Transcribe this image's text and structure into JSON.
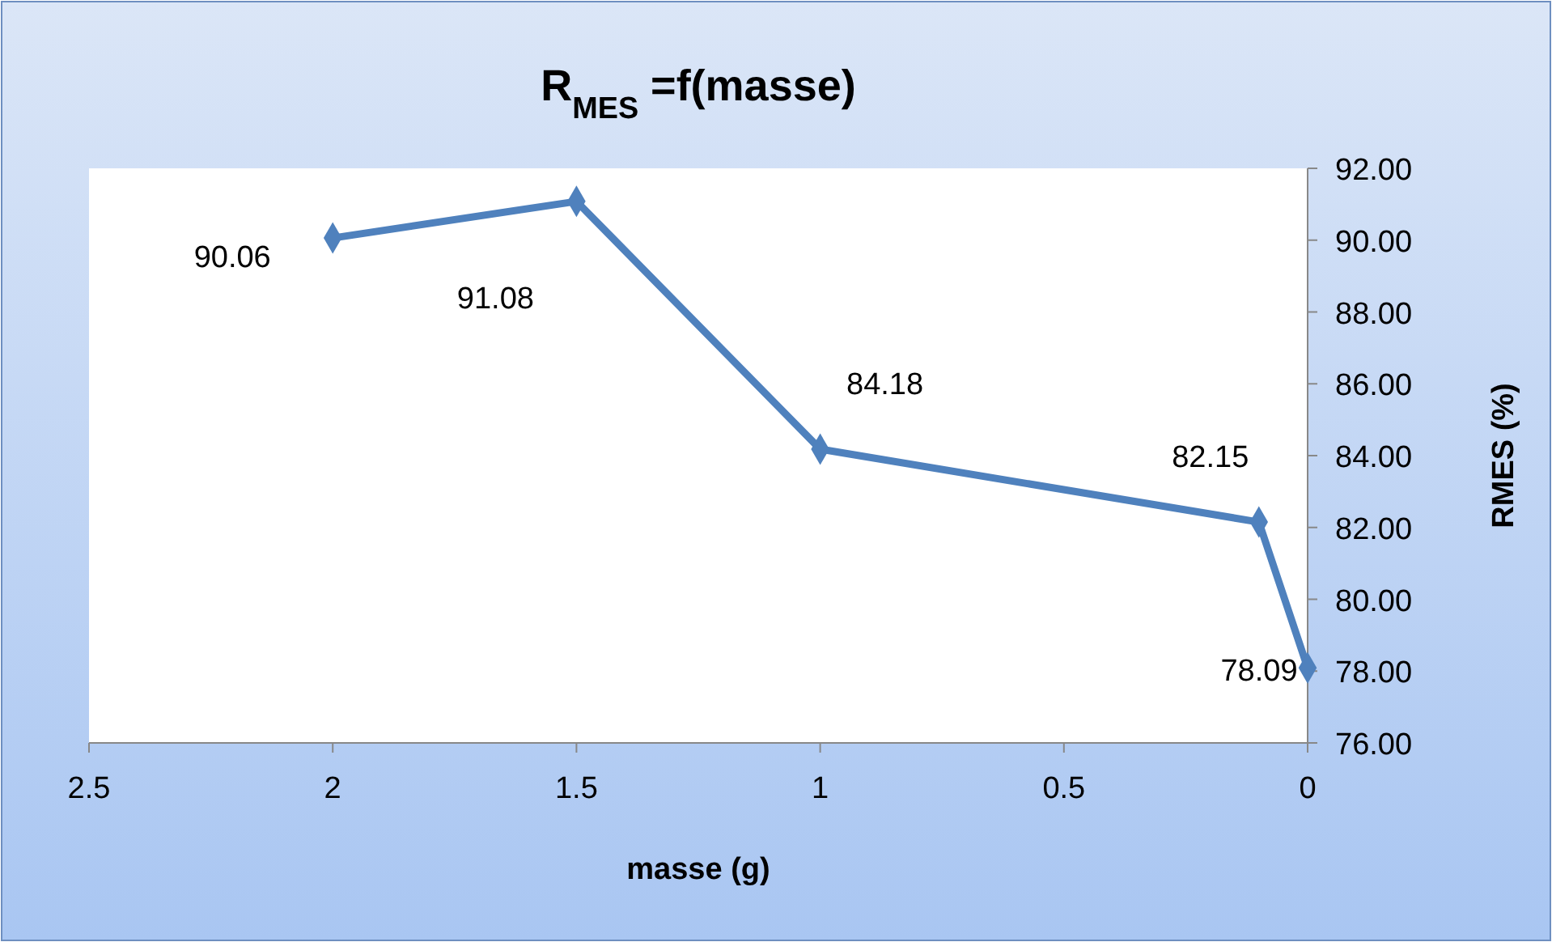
{
  "chart_data": {
    "type": "line",
    "title": "R$_{MES}$ =f(masse)",
    "xlabel": "masse (g)",
    "ylabel": "RMES (%)",
    "x": [
      2,
      1.5,
      1,
      0.1,
      0
    ],
    "series": [
      {
        "color": "#4f81bd",
        "values": [
          90.06,
          91.08,
          84.18,
          82.15,
          78.09
        ]
      }
    ],
    "xlim": [
      2.5,
      0
    ],
    "xticks": [
      2.5,
      2,
      1.5,
      1,
      0.5,
      0
    ],
    "ylim": [
      76,
      92
    ],
    "yticks": [
      {
        "value": 76,
        "label": "76.00"
      },
      {
        "value": 78,
        "label": "78.00"
      },
      {
        "value": 80,
        "label": "80.00"
      },
      {
        "value": 82,
        "label": "82.00"
      },
      {
        "value": 84,
        "label": "84.00"
      },
      {
        "value": 86,
        "label": "86.00"
      },
      {
        "value": 88,
        "label": "88.00"
      },
      {
        "value": 90,
        "label": "90.00"
      },
      {
        "value": 92,
        "label": "92.00"
      }
    ],
    "marker": "diamond",
    "line_style": "solid",
    "data_labels": true
  }
}
